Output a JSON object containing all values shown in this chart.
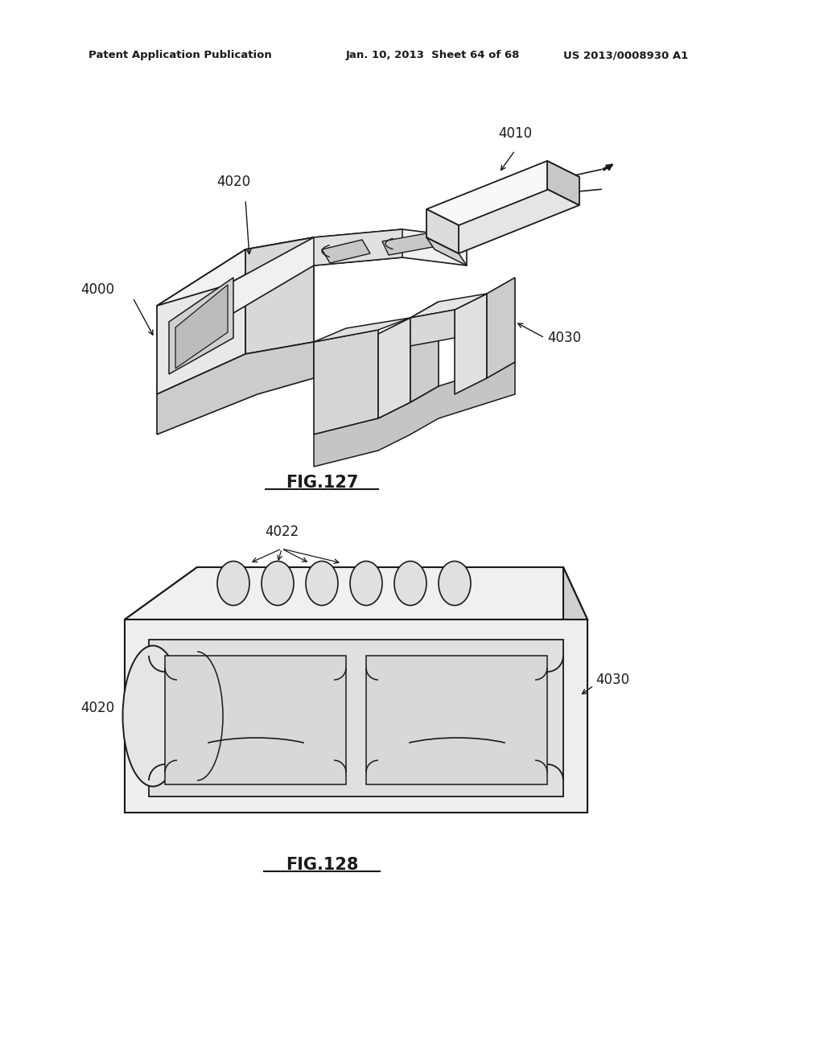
{
  "bg_color": "#ffffff",
  "header_left": "Patent Application Publication",
  "header_mid": "Jan. 10, 2013  Sheet 64 of 68",
  "header_right": "US 2013/0008930 A1",
  "fig127_label": "FIG.127",
  "fig128_label": "FIG.128",
  "line_color": "#1a1a1a",
  "text_color": "#1a1a1a",
  "header_fontsize": 9.5,
  "label_fontsize": 12,
  "fig_label_fontsize": 15
}
